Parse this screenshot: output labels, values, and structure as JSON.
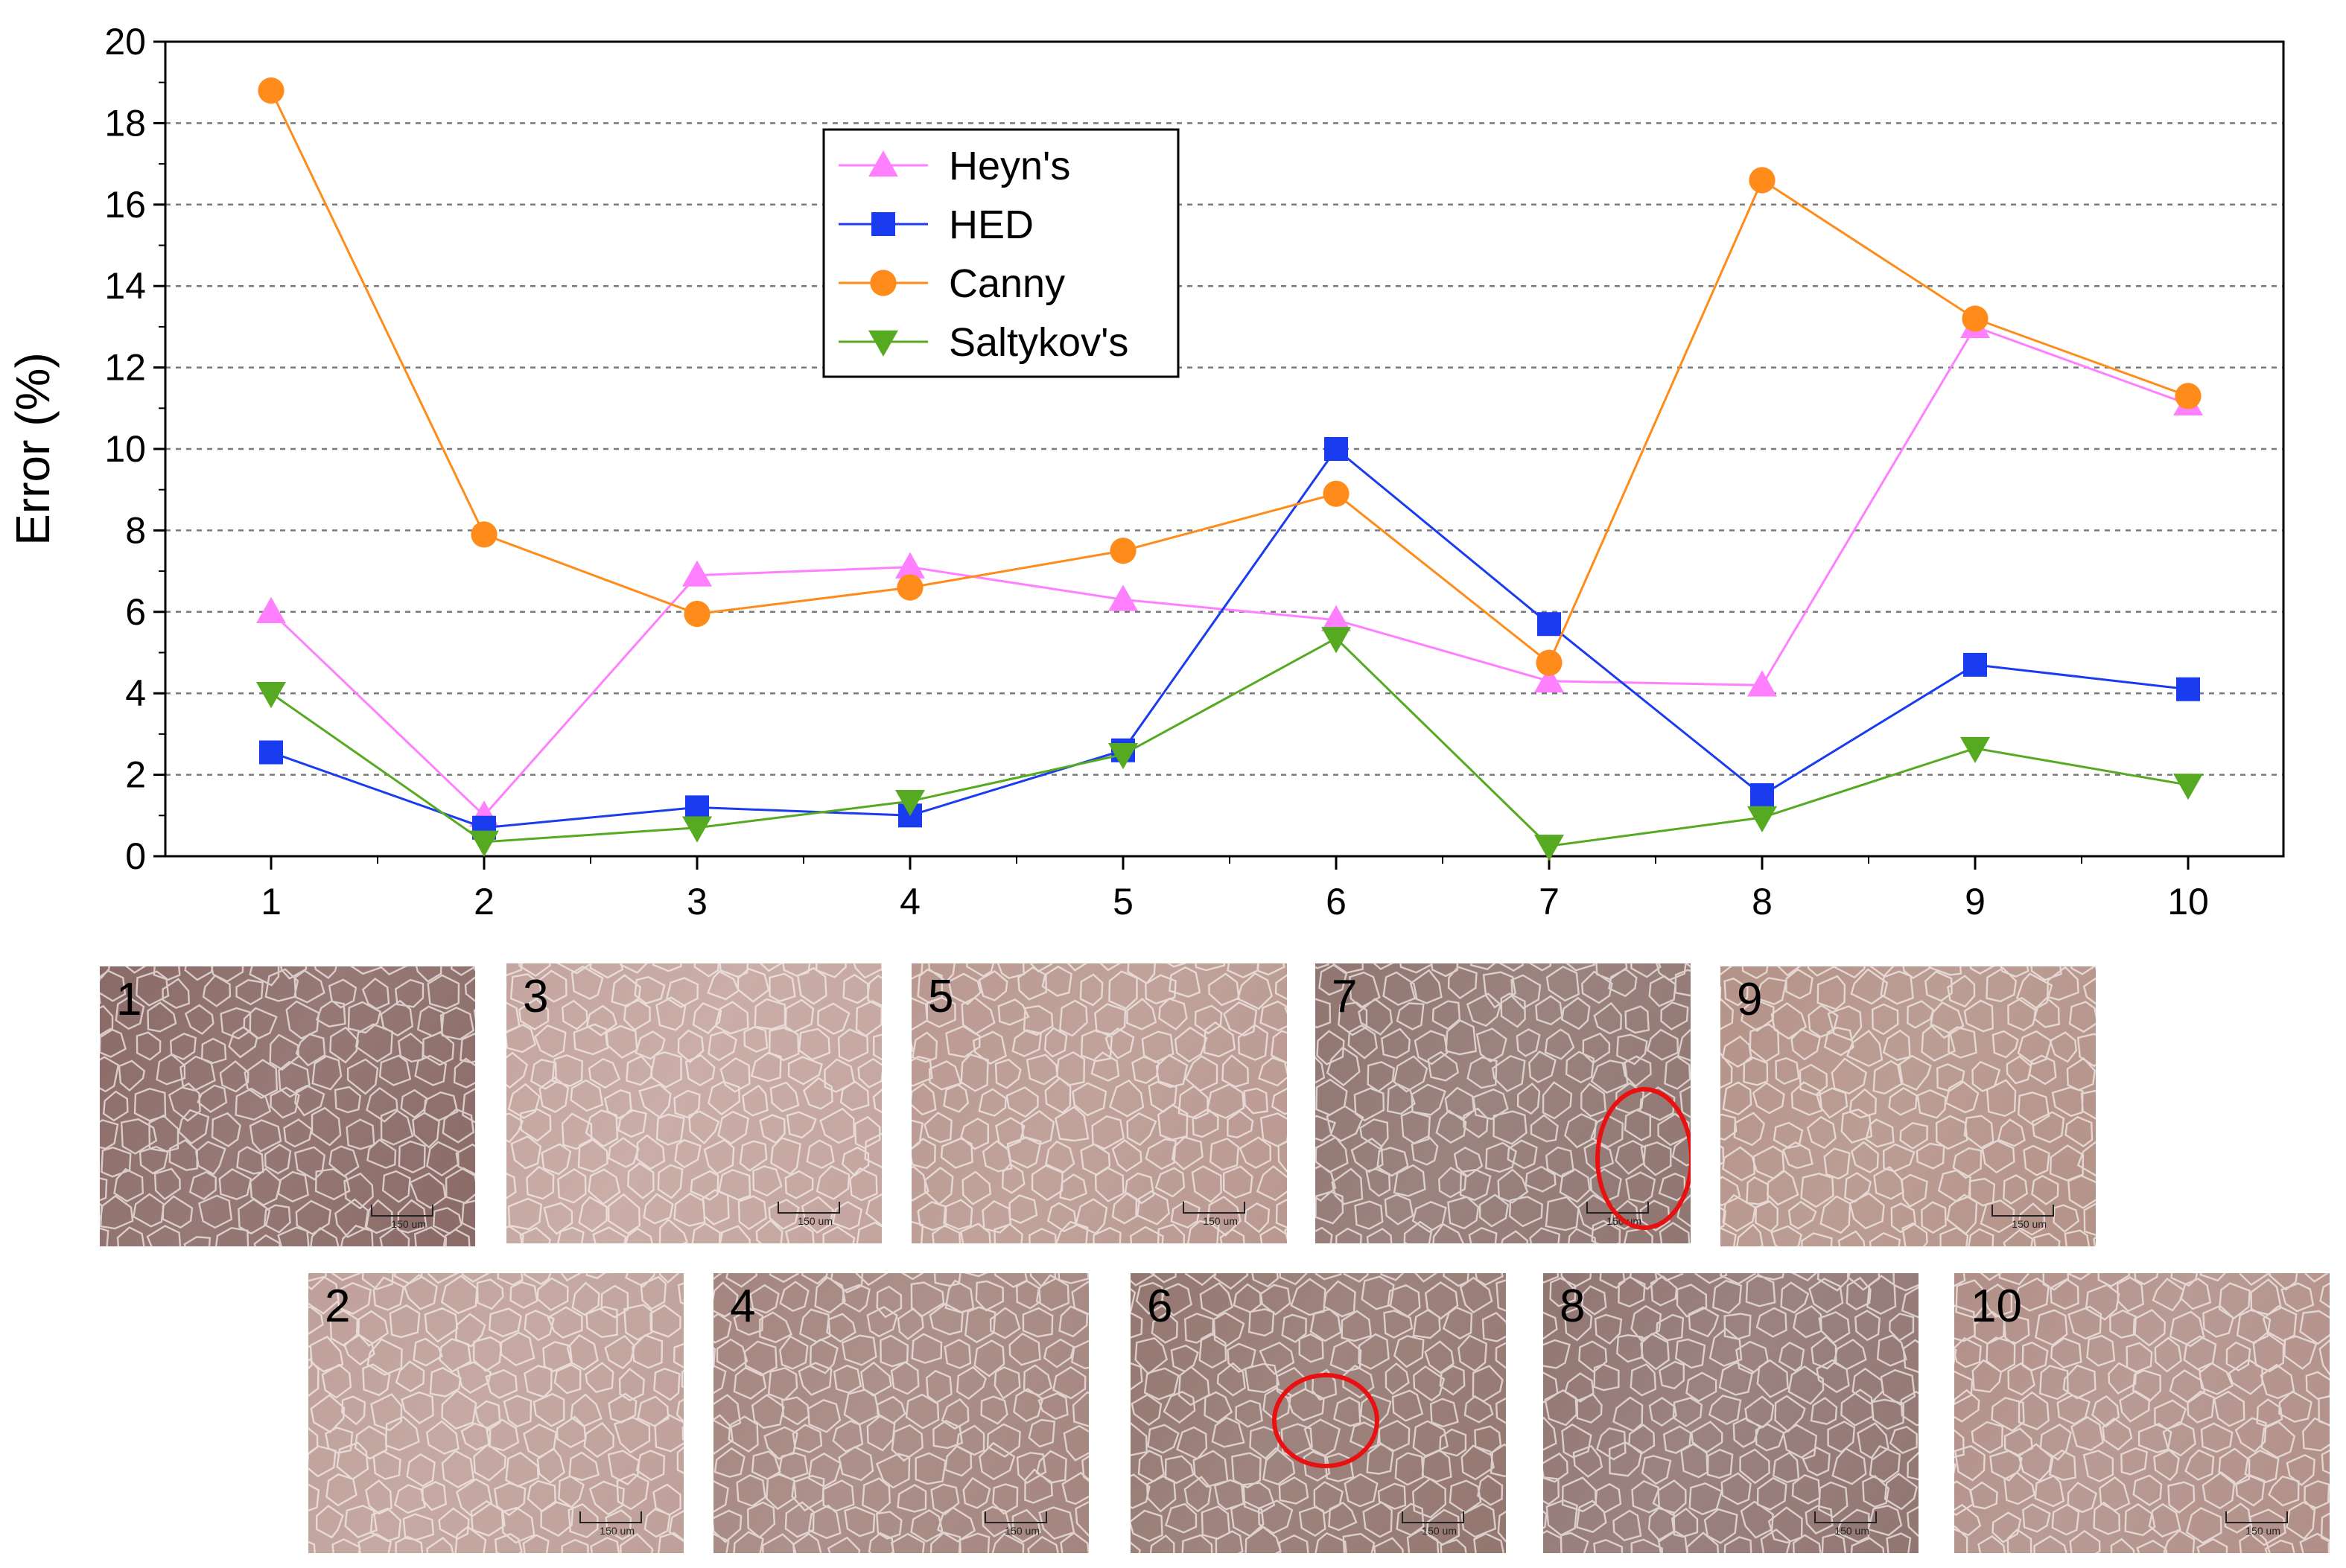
{
  "chart_data": {
    "type": "line",
    "title": "",
    "xlabel": "",
    "ylabel": "Error (%)",
    "x": [
      1,
      2,
      3,
      4,
      5,
      6,
      7,
      8,
      9,
      10
    ],
    "x_tick_labels": [
      "1",
      "2",
      "3",
      "4",
      "5",
      "6",
      "7",
      "8",
      "9",
      "10"
    ],
    "ylim": [
      0,
      20
    ],
    "y_ticks": [
      0,
      2,
      4,
      6,
      8,
      10,
      12,
      14,
      16,
      18,
      20
    ],
    "y_tick_labels": [
      "0",
      "2",
      "4",
      "6",
      "8",
      "10",
      "12",
      "14",
      "16",
      "18",
      "20"
    ],
    "grid": "horizontal dashed",
    "legend_position": "top-center",
    "series": [
      {
        "name": "Heyn's",
        "color": "#ff80ff",
        "marker": "triangle-up",
        "values": [
          6.0,
          1.0,
          6.9,
          7.1,
          6.3,
          5.8,
          4.3,
          4.2,
          13.0,
          11.1
        ]
      },
      {
        "name": "HED",
        "color": "#1a3cf0",
        "marker": "square",
        "values": [
          2.55,
          0.7,
          1.2,
          1.0,
          2.6,
          10.0,
          5.7,
          1.5,
          4.7,
          4.1
        ]
      },
      {
        "name": "Canny",
        "color": "#ff8c1a",
        "marker": "circle",
        "values": [
          18.8,
          7.9,
          5.95,
          6.6,
          7.5,
          8.9,
          4.75,
          16.6,
          13.2,
          11.3
        ]
      },
      {
        "name": "Saltykov's",
        "color": "#55aa22",
        "marker": "triangle-down",
        "values": [
          4.0,
          0.35,
          0.7,
          1.35,
          2.5,
          5.35,
          0.25,
          0.95,
          2.65,
          1.75
        ]
      }
    ]
  },
  "micrographs": {
    "scale_text": "150 um",
    "top_row": [
      {
        "label": "1",
        "tone": "#8a6a66",
        "defect": false
      },
      {
        "label": "3",
        "tone": "#c4a49e",
        "defect": false
      },
      {
        "label": "5",
        "tone": "#b99890",
        "defect": false
      },
      {
        "label": "7",
        "tone": "#907570",
        "defect": true
      },
      {
        "label": "9",
        "tone": "#b49288",
        "defect": false
      }
    ],
    "bottom_row": [
      {
        "label": "2",
        "tone": "#bf9f99",
        "defect": false
      },
      {
        "label": "4",
        "tone": "#a4847e",
        "defect": false
      },
      {
        "label": "6",
        "tone": "#947670",
        "defect": true
      },
      {
        "label": "8",
        "tone": "#917571",
        "defect": false
      },
      {
        "label": "10",
        "tone": "#b18f88",
        "defect": false
      }
    ],
    "defect_color": "#e81010"
  }
}
